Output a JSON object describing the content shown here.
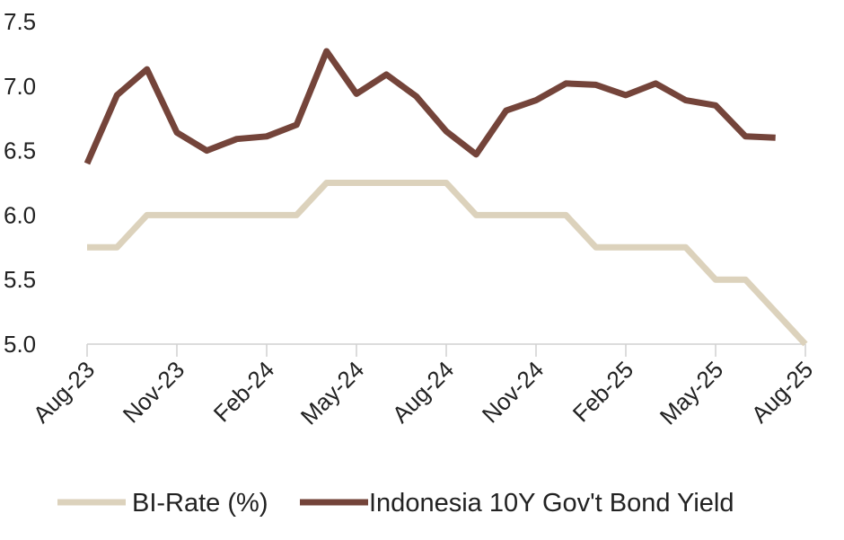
{
  "chart_data": {
    "type": "line",
    "title": "",
    "xlabel": "",
    "ylabel": "",
    "ylim": [
      5.0,
      7.5
    ],
    "y_ticks": [
      "5.0",
      "5.5",
      "6.0",
      "6.5",
      "7.0",
      "7.5"
    ],
    "x_tick_labels": [
      "Aug-23",
      "Nov-23",
      "Feb-24",
      "May-24",
      "Aug-24",
      "Nov-24",
      "Feb-25",
      "May-25",
      "Aug-25"
    ],
    "x": [
      "Aug-23",
      "Sep-23",
      "Oct-23",
      "Nov-23",
      "Dec-23",
      "Jan-24",
      "Feb-24",
      "Mar-24",
      "Apr-24",
      "May-24",
      "Jun-24",
      "Jul-24",
      "Aug-24",
      "Sep-24",
      "Oct-24",
      "Nov-24",
      "Dec-24",
      "Jan-25",
      "Feb-25",
      "Mar-25",
      "Apr-25",
      "May-25",
      "Jun-25",
      "Jul-25",
      "Aug-25"
    ],
    "grid": false,
    "legend_position": "bottom",
    "series": [
      {
        "name": "BI-Rate (%)",
        "color": "#dcd2bc",
        "values": [
          5.75,
          5.75,
          6.0,
          6.0,
          6.0,
          6.0,
          6.0,
          6.0,
          6.25,
          6.25,
          6.25,
          6.25,
          6.25,
          6.0,
          6.0,
          6.0,
          6.0,
          5.75,
          5.75,
          5.75,
          5.75,
          5.5,
          5.5,
          5.25,
          5.0
        ]
      },
      {
        "name": "Indonesia 10Y Gov't Bond Yield",
        "color": "#74443a",
        "values": [
          6.4,
          6.93,
          7.13,
          6.64,
          6.5,
          6.59,
          6.61,
          6.7,
          7.27,
          6.94,
          7.09,
          6.92,
          6.65,
          6.47,
          6.81,
          6.89,
          7.02,
          7.01,
          6.93,
          7.02,
          6.89,
          6.85,
          6.61,
          6.6,
          null
        ]
      }
    ]
  }
}
